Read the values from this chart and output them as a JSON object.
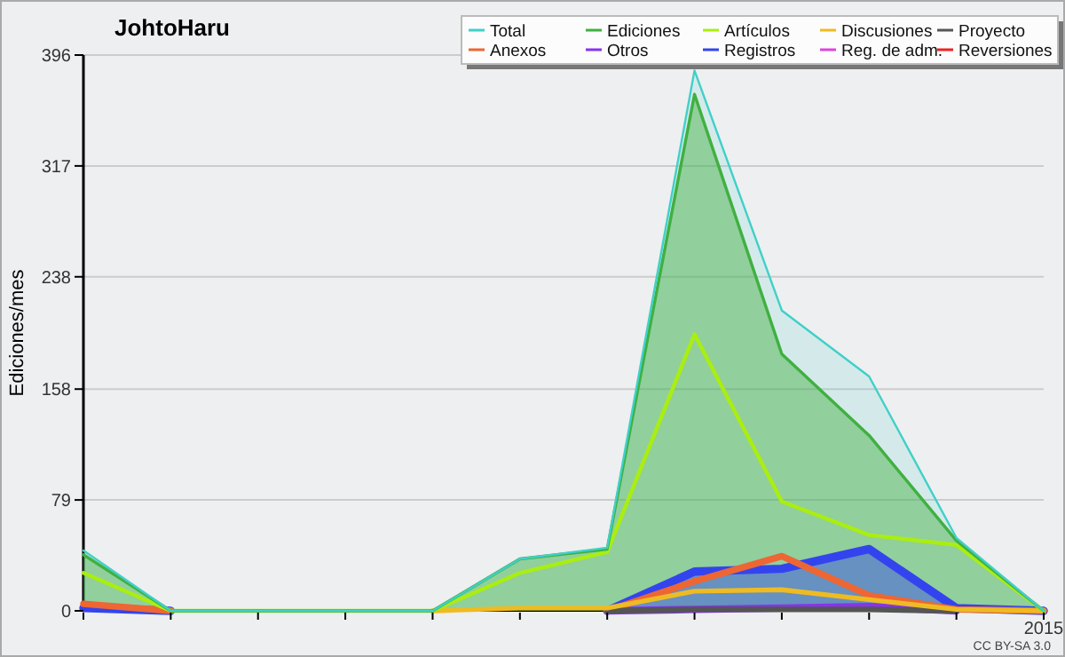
{
  "chart_data": {
    "type": "line",
    "title": "JohtoHaru",
    "ylabel": "Ediciones/mes",
    "annotations": [
      "CC BY-SA 3.0"
    ],
    "categories": [
      null,
      null,
      null,
      null,
      null,
      null,
      null,
      null,
      null,
      null,
      null,
      "2015"
    ],
    "ylim": [
      0,
      396
    ],
    "yticks": [
      0,
      79,
      158,
      238,
      317,
      396
    ],
    "grid": "y",
    "legend": "top right",
    "marker": "none",
    "series": [
      {
        "name": "Total",
        "type": "area",
        "color": "#40d0c8",
        "values": [
          43,
          0,
          0,
          0,
          0,
          37,
          45,
          385,
          214,
          167,
          52,
          0
        ]
      },
      {
        "name": "Ediciones",
        "type": "area",
        "color": "#40b040",
        "values": [
          40,
          0,
          0,
          0,
          0,
          37,
          44,
          368,
          183,
          125,
          50,
          0
        ]
      },
      {
        "name": "Artículos",
        "color": "#aaee11",
        "values": [
          27,
          0,
          0,
          0,
          0,
          27,
          42,
          197,
          78,
          54,
          47,
          0
        ]
      },
      {
        "name": "Discusiones",
        "color": "#eebb22",
        "values": [
          null,
          null,
          null,
          null,
          0,
          2,
          2,
          14,
          15,
          8,
          1,
          0
        ]
      },
      {
        "name": "Proyecto",
        "color": "#555555",
        "values": [
          null,
          null,
          null,
          null,
          null,
          null,
          0,
          1,
          1,
          1,
          0,
          null
        ]
      },
      {
        "name": "Anexos",
        "color": "#ee6633",
        "values": [
          5,
          0,
          null,
          null,
          null,
          null,
          0,
          21,
          39,
          11,
          1,
          0
        ]
      },
      {
        "name": "Otros",
        "color": "#8833ee",
        "values": [
          null,
          null,
          null,
          null,
          null,
          null,
          0,
          1,
          2,
          3,
          0,
          null
        ]
      },
      {
        "name": "Registros",
        "type": "area",
        "color": "#3344ee",
        "values": [
          2,
          0,
          null,
          null,
          null,
          null,
          0,
          28,
          30,
          44,
          2,
          0
        ]
      },
      {
        "name": "Reg. de adm.",
        "color": "#dd44dd",
        "values": [
          null,
          null,
          null,
          null,
          null,
          null,
          null,
          null,
          null,
          null,
          null,
          null
        ]
      },
      {
        "name": "Reversiones",
        "color": "#ee2222",
        "values": [
          null,
          null,
          null,
          null,
          null,
          null,
          null,
          null,
          null,
          null,
          null,
          null
        ]
      }
    ]
  }
}
